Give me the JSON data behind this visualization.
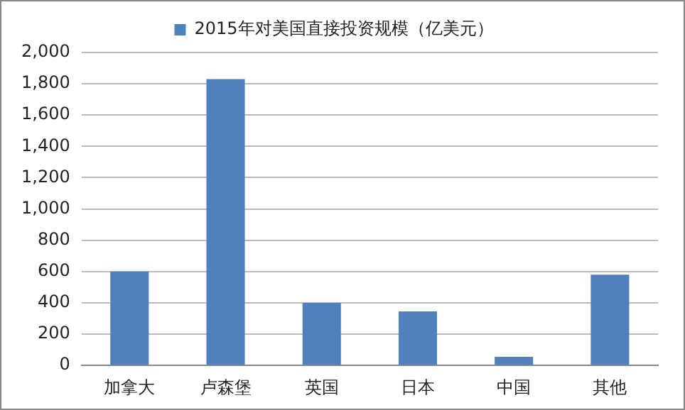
{
  "chart_data": {
    "type": "bar",
    "categories": [
      "加拿大",
      "卢森堡",
      "英国",
      "日本",
      "中国",
      "其他"
    ],
    "series": [
      {
        "name": "2015年对美国直接投资规模（亿美元）",
        "color": "#4f81bd",
        "values": [
          600,
          1830,
          400,
          345,
          55,
          580
        ]
      }
    ],
    "ylim": [
      0,
      2000
    ],
    "yticks": [
      {
        "value": 0,
        "label": "0"
      },
      {
        "value": 200,
        "label": "200"
      },
      {
        "value": 400,
        "label": "400"
      },
      {
        "value": 600,
        "label": "600"
      },
      {
        "value": 800,
        "label": "800"
      },
      {
        "value": 1000,
        "label": "1,000"
      },
      {
        "value": 1200,
        "label": "1,200"
      },
      {
        "value": 1400,
        "label": "1,400"
      },
      {
        "value": 1600,
        "label": "1,600"
      },
      {
        "value": 1800,
        "label": "1,800"
      },
      {
        "value": 2000,
        "label": "2,000"
      }
    ],
    "grid": "y",
    "legend": "top"
  }
}
